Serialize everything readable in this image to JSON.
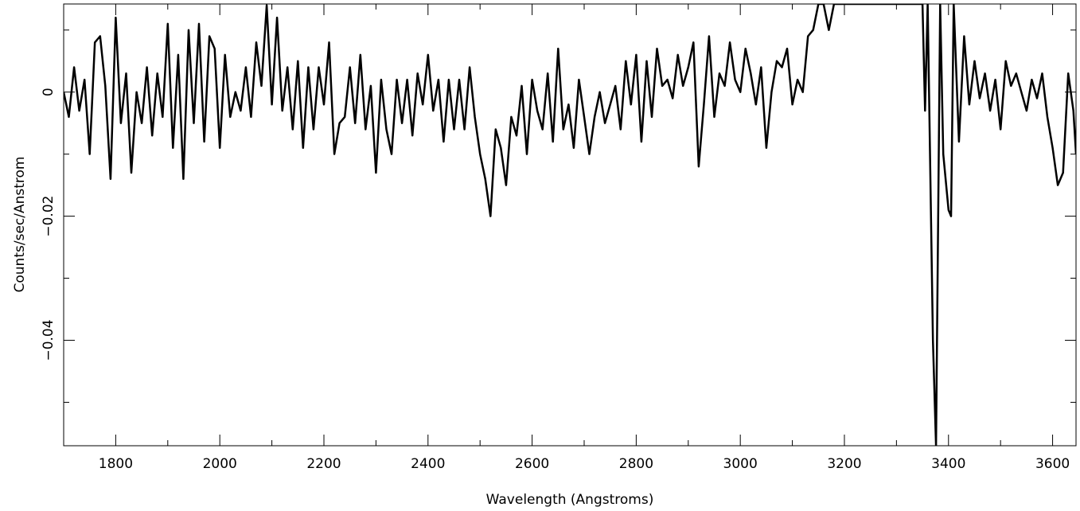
{
  "chart_data": {
    "type": "line",
    "xlabel": "Wavelength (Angstroms)",
    "ylabel": "Counts/sec/Anstrom",
    "color": "#000000",
    "xlim": [
      1700,
      3645
    ],
    "ylim": [
      -0.057,
      0.0142
    ],
    "xticks": [
      1800,
      2000,
      2200,
      2400,
      2600,
      2800,
      3000,
      3200,
      3400,
      3600
    ],
    "xminorticks": [
      1700,
      1900,
      2100,
      2300,
      2500,
      2700,
      2900,
      3100,
      3300,
      3500
    ],
    "yticks": [
      0,
      {
        "value": -0.02,
        "label": "−0.02"
      },
      {
        "value": -0.04,
        "label": "−0.04"
      }
    ],
    "yminorticks": [
      0.01,
      -0.01,
      -0.03,
      -0.05
    ],
    "x": [
      1700,
      1710,
      1720,
      1730,
      1740,
      1750,
      1760,
      1770,
      1780,
      1790,
      1800,
      1810,
      1820,
      1830,
      1840,
      1850,
      1860,
      1870,
      1880,
      1890,
      1900,
      1910,
      1920,
      1930,
      1940,
      1950,
      1960,
      1970,
      1980,
      1990,
      2000,
      2010,
      2020,
      2030,
      2040,
      2050,
      2060,
      2070,
      2080,
      2090,
      2100,
      2110,
      2120,
      2130,
      2140,
      2150,
      2160,
      2170,
      2180,
      2190,
      2200,
      2210,
      2220,
      2230,
      2240,
      2250,
      2260,
      2270,
      2280,
      2290,
      2300,
      2310,
      2320,
      2330,
      2340,
      2350,
      2360,
      2370,
      2380,
      2390,
      2400,
      2410,
      2420,
      2430,
      2440,
      2450,
      2460,
      2470,
      2480,
      2490,
      2500,
      2510,
      2520,
      2530,
      2540,
      2550,
      2560,
      2570,
      2580,
      2590,
      2600,
      2610,
      2620,
      2630,
      2640,
      2650,
      2660,
      2670,
      2680,
      2690,
      2700,
      2710,
      2720,
      2730,
      2740,
      2750,
      2760,
      2770,
      2780,
      2790,
      2800,
      2810,
      2820,
      2830,
      2840,
      2850,
      2860,
      2870,
      2880,
      2890,
      2900,
      2910,
      2920,
      2930,
      2940,
      2950,
      2960,
      2970,
      2980,
      2990,
      3000,
      3010,
      3020,
      3030,
      3040,
      3050,
      3060,
      3070,
      3080,
      3090,
      3100,
      3110,
      3120,
      3130,
      3140,
      3150,
      3160,
      3170,
      3180,
      3200,
      3250,
      3300,
      3350,
      3355,
      3360,
      3370,
      3376,
      3384,
      3390,
      3400,
      3405,
      3410,
      3420,
      3430,
      3440,
      3450,
      3460,
      3470,
      3480,
      3490,
      3500,
      3510,
      3520,
      3530,
      3540,
      3550,
      3560,
      3570,
      3580,
      3590,
      3600,
      3610,
      3620,
      3630,
      3640,
      3645
    ],
    "values": [
      0.0,
      -0.004,
      0.004,
      -0.003,
      0.002,
      -0.01,
      0.008,
      0.009,
      0.001,
      -0.014,
      0.012,
      -0.005,
      0.003,
      -0.013,
      0.0,
      -0.005,
      0.004,
      -0.007,
      0.003,
      -0.004,
      0.011,
      -0.009,
      0.006,
      -0.014,
      0.01,
      -0.005,
      0.011,
      -0.008,
      0.009,
      0.007,
      -0.009,
      0.006,
      -0.004,
      0.0,
      -0.003,
      0.004,
      -0.004,
      0.008,
      0.001,
      0.014,
      -0.002,
      0.012,
      -0.003,
      0.004,
      -0.006,
      0.005,
      -0.009,
      0.004,
      -0.006,
      0.004,
      -0.002,
      0.008,
      -0.01,
      -0.005,
      -0.004,
      0.004,
      -0.005,
      0.006,
      -0.006,
      0.001,
      -0.013,
      0.002,
      -0.006,
      -0.01,
      0.002,
      -0.005,
      0.002,
      -0.007,
      0.003,
      -0.002,
      0.006,
      -0.003,
      0.002,
      -0.008,
      0.002,
      -0.006,
      0.002,
      -0.006,
      0.004,
      -0.004,
      -0.01,
      -0.014,
      -0.02,
      -0.006,
      -0.009,
      -0.015,
      -0.004,
      -0.007,
      0.001,
      -0.01,
      0.002,
      -0.003,
      -0.006,
      0.003,
      -0.008,
      0.007,
      -0.006,
      -0.002,
      -0.009,
      0.002,
      -0.004,
      -0.01,
      -0.004,
      0.0,
      -0.005,
      -0.002,
      0.001,
      -0.006,
      0.005,
      -0.002,
      0.006,
      -0.008,
      0.005,
      -0.004,
      0.007,
      0.001,
      0.002,
      -0.001,
      0.006,
      0.001,
      0.004,
      0.008,
      -0.012,
      -0.002,
      0.009,
      -0.004,
      0.003,
      0.001,
      0.008,
      0.002,
      0.0,
      0.007,
      0.003,
      -0.002,
      0.004,
      -0.009,
      0.0,
      0.005,
      0.004,
      0.007,
      -0.002,
      0.002,
      0.0,
      0.009,
      0.01,
      0.0142,
      0.0142,
      0.01,
      0.0142,
      0.0142,
      0.0142,
      0.0142,
      0.0142,
      -0.003,
      0.0142,
      -0.04,
      -0.057,
      0.0142,
      -0.01,
      -0.019,
      -0.02,
      0.0142,
      -0.008,
      0.009,
      -0.002,
      0.005,
      -0.001,
      0.003,
      -0.003,
      0.002,
      -0.006,
      0.005,
      0.001,
      0.003,
      0.0,
      -0.003,
      0.002,
      -0.001,
      0.003,
      -0.004,
      -0.009,
      -0.015,
      -0.013,
      0.003,
      -0.003,
      -0.01
    ]
  }
}
